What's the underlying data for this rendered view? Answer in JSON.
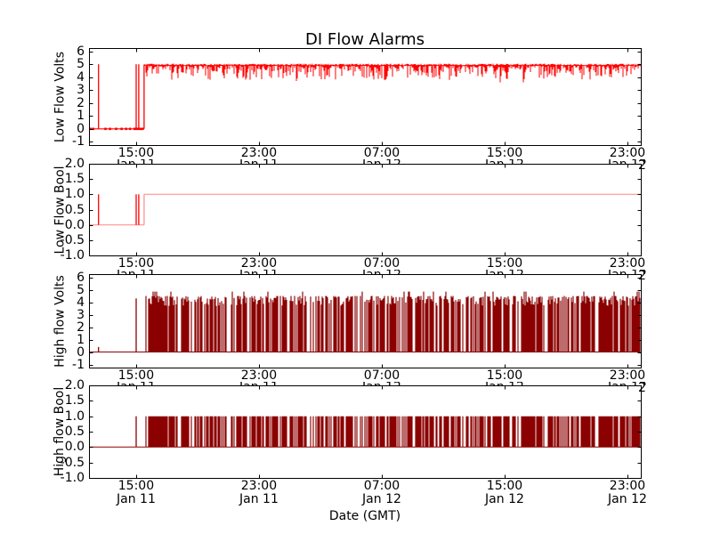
{
  "chart_data": {
    "type": "line",
    "title": "DI Flow Alarms",
    "xlabel": "Date (GMT)",
    "background": "#ffffff",
    "frame_color": "#000000",
    "x_axis": {
      "unit": "hours since Jan 11 00:00 GMT",
      "domain": [
        11.93,
        47.87
      ],
      "major_tick_hours": [
        15,
        23,
        31,
        39,
        47
      ],
      "tick_time_labels": [
        "15:00",
        "23:00",
        "07:00",
        "15:00",
        "23:00"
      ],
      "tick_date_labels": [
        "Jan 11",
        "Jan 11",
        "Jan 12",
        "Jan 12",
        "Jan 12"
      ]
    },
    "subplots": [
      {
        "key": "low-flow-volts",
        "ylabel": "Low Flow Volts",
        "ylim": [
          -1.25,
          6.25
        ],
        "yticks": [
          6,
          5,
          4,
          3,
          2,
          1,
          0,
          -1
        ],
        "ytick_labels": [
          "6",
          "5",
          "4",
          "3",
          "2",
          "1",
          "0",
          "-1"
        ],
        "color": "#ff0000",
        "soft_color": "#ff9292",
        "segments": [
          {
            "kind": "flat",
            "from": 11.93,
            "to": 15.52,
            "value": 0,
            "width": 1.2,
            "dot_hours": [
              12.02,
              12.2,
              13.0,
              13.3,
              13.7,
              14.05,
              14.35,
              14.6,
              14.9,
              15.05,
              15.18,
              15.3,
              15.42
            ]
          },
          {
            "kind": "spike",
            "at": 12.55,
            "base": 0,
            "peak": 5.0
          },
          {
            "kind": "spike",
            "at": 15.0,
            "base": 0,
            "peak": 5.0
          },
          {
            "kind": "spike",
            "at": 15.17,
            "base": 0,
            "peak": 5.0
          },
          {
            "kind": "spike",
            "at": 15.52,
            "base": 0,
            "peak": 4.95
          },
          {
            "kind": "noisy_band",
            "from": 15.52,
            "to": 47.85,
            "top": 5.0,
            "typical_low": 4.4,
            "min_low": 3.6,
            "seed": 77
          }
        ]
      },
      {
        "key": "low-flow-bool",
        "ylabel": "Low Flow Bool",
        "ylim": [
          -1,
          2
        ],
        "yticks": [
          2.0,
          1.5,
          1.0,
          0.5,
          0.0,
          -0.5,
          -1.0
        ],
        "ytick_labels": [
          "2.0",
          "1.5",
          "1.0",
          "0.5",
          "0.0",
          "-0.5",
          "-1.0"
        ],
        "color": "#ff0000",
        "soft_color": "#ff9292",
        "segments": [
          {
            "kind": "flat",
            "from": 11.93,
            "to": 15.52,
            "value": 0,
            "soft": true,
            "width": 1.1
          },
          {
            "kind": "spike",
            "at": 12.55,
            "base": 0,
            "peak": 1.0
          },
          {
            "kind": "spike",
            "at": 15.0,
            "base": 0,
            "peak": 1.0
          },
          {
            "kind": "spike",
            "at": 15.17,
            "base": 0,
            "peak": 1.0
          },
          {
            "kind": "spike",
            "at": 15.52,
            "base": 0,
            "peak": 1.0,
            "soft": true
          },
          {
            "kind": "flat",
            "from": 15.52,
            "to": 47.85,
            "value": 1.0,
            "soft": true,
            "width": 1.1
          }
        ]
      },
      {
        "key": "high-flow-volts",
        "ylabel": "High flow Volts",
        "ylim": [
          -1.25,
          6.25
        ],
        "yticks": [
          6,
          5,
          4,
          3,
          2,
          1,
          0,
          -1
        ],
        "ytick_labels": [
          "6",
          "5",
          "4",
          "3",
          "2",
          "1",
          "0",
          "-1"
        ],
        "color": "#8b0000",
        "soft_color": "#a84848",
        "segments": [
          {
            "kind": "flat",
            "from": 11.93,
            "to": 47.85,
            "value": 0,
            "width": 1.0
          },
          {
            "kind": "spike",
            "at": 12.55,
            "base": 0,
            "peak": 0.4
          },
          {
            "kind": "spike",
            "at": 15.0,
            "base": 0,
            "peak": 4.3
          },
          {
            "kind": "dense_toggle",
            "from": 15.6,
            "to": 47.8,
            "low": 0,
            "top_typical": 4.5,
            "top_min": 3.7,
            "top_max": 4.85,
            "seed": 1234,
            "gaps": [
              [
                17.75,
                0.18
              ],
              [
                19.3,
                0.12
              ],
              [
                20.9,
                0.22
              ],
              [
                23.3,
                0.15
              ],
              [
                24.8,
                0.12
              ],
              [
                26.1,
                0.18
              ],
              [
                27.7,
                0.12
              ],
              [
                29.4,
                0.2
              ],
              [
                31.2,
                0.12
              ],
              [
                33.0,
                0.15
              ],
              [
                34.6,
                0.12
              ],
              [
                36.3,
                0.18
              ],
              [
                38.1,
                0.12
              ],
              [
                39.9,
                0.15
              ],
              [
                41.6,
                0.2
              ],
              [
                43.2,
                0.12
              ],
              [
                44.9,
                0.15
              ],
              [
                46.4,
                0.12
              ]
            ]
          }
        ]
      },
      {
        "key": "high-flow-bool",
        "ylabel": "High flow Bool",
        "ylim": [
          -1,
          2
        ],
        "yticks": [
          2.0,
          1.5,
          1.0,
          0.5,
          0.0,
          -0.5,
          -1.0
        ],
        "ytick_labels": [
          "2.0",
          "1.5",
          "1.0",
          "0.5",
          "0.0",
          "-0.5",
          "-1.0"
        ],
        "color": "#8b0000",
        "soft_color": "#a84848",
        "segments": [
          {
            "kind": "flat",
            "from": 11.93,
            "to": 47.85,
            "value": 0,
            "width": 1.0
          },
          {
            "kind": "spike",
            "at": 15.0,
            "base": 0,
            "peak": 1.0
          },
          {
            "kind": "dense_toggle",
            "from": 15.6,
            "to": 47.8,
            "low": 0,
            "top_typical": 1.0,
            "top_min": 1.0,
            "top_max": 1.0,
            "seed": 1234,
            "gaps": [
              [
                17.75,
                0.18
              ],
              [
                19.3,
                0.12
              ],
              [
                20.9,
                0.22
              ],
              [
                23.3,
                0.15
              ],
              [
                24.8,
                0.12
              ],
              [
                26.1,
                0.18
              ],
              [
                27.7,
                0.12
              ],
              [
                29.4,
                0.2
              ],
              [
                31.2,
                0.12
              ],
              [
                33.0,
                0.15
              ],
              [
                34.6,
                0.12
              ],
              [
                36.3,
                0.18
              ],
              [
                38.1,
                0.12
              ],
              [
                39.9,
                0.15
              ],
              [
                41.6,
                0.2
              ],
              [
                43.2,
                0.12
              ],
              [
                44.9,
                0.15
              ],
              [
                46.4,
                0.12
              ]
            ]
          }
        ]
      }
    ]
  }
}
